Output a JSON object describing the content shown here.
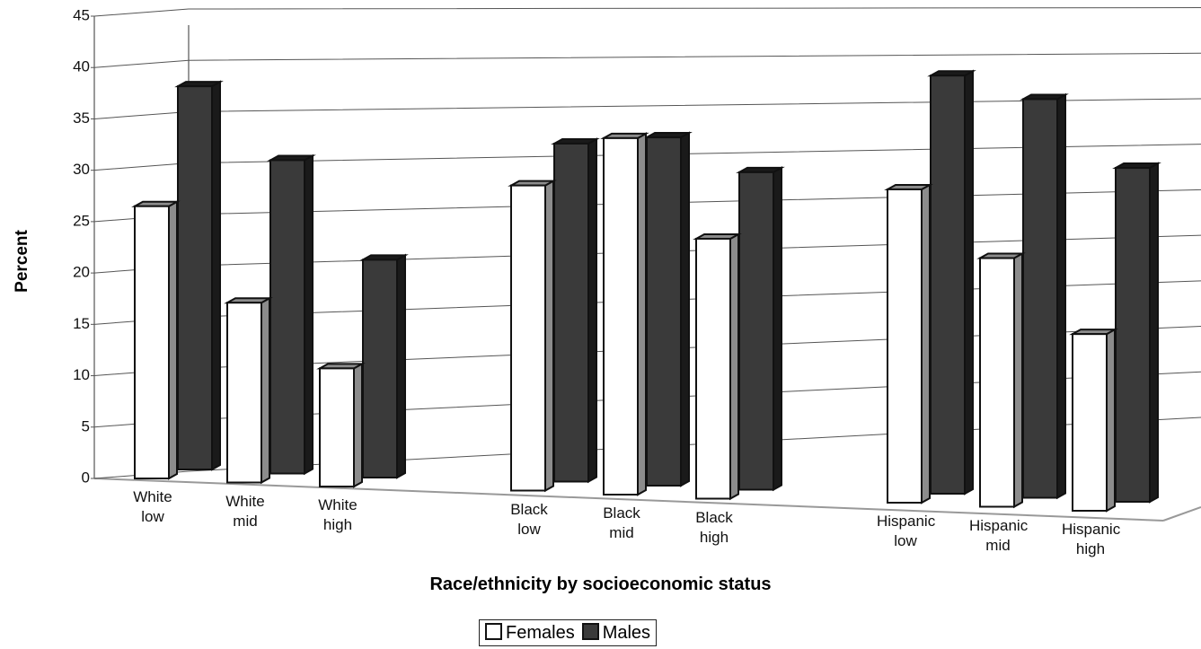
{
  "chart_data": {
    "type": "bar3d",
    "x_label": "Race/ethnicity by socioeconomic status",
    "y_label": "Percent",
    "categories": [
      "White low",
      "White mid",
      "White high",
      "Black low",
      "Black mid",
      "Black high",
      "Hispanic low",
      "Hispanic mid",
      "Hispanic high"
    ],
    "series": [
      {
        "name": "Females",
        "color": "#ffffff",
        "side_color": "#8c8c8c",
        "values": [
          26.5,
          17.5,
          11.5,
          29.7,
          34.7,
          25.3,
          30.5,
          24.2,
          17.2
        ]
      },
      {
        "name": "Males",
        "color": "#3a3a3a",
        "side_color": "#1a1a1a",
        "values": [
          37.3,
          30.5,
          21.2,
          32.9,
          33.9,
          30.9,
          40.7,
          38.8,
          32.5
        ]
      }
    ],
    "ylim": [
      0,
      45
    ],
    "yticks": [
      0,
      5,
      10,
      15,
      20,
      25,
      30,
      35,
      40,
      45
    ],
    "grid": true,
    "legend": "bottom"
  }
}
